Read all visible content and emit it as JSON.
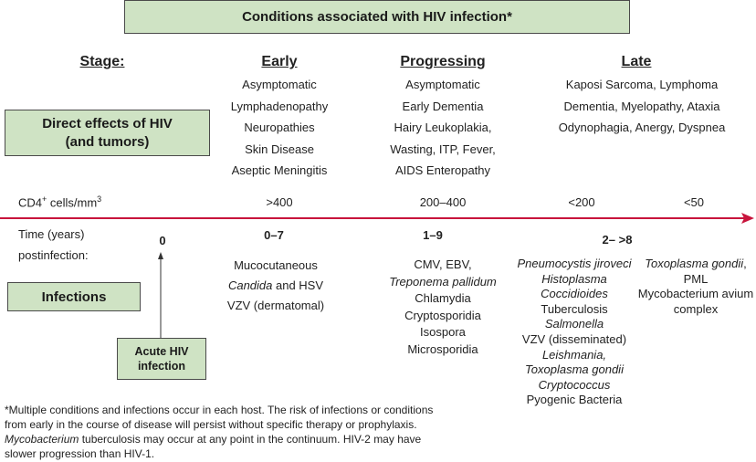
{
  "title": "Conditions associated with HIV infection*",
  "stage_label": "Stage:",
  "stages": [
    "Early",
    "Progressing",
    "Late"
  ],
  "direct_effects_label": "Direct effects of HIV (and tumors)",
  "direct_effects": {
    "early": [
      [
        {
          "t": "Asymptomatic"
        }
      ],
      [
        {
          "t": "Lymphadenopathy"
        }
      ],
      [
        {
          "t": "Neuropathies"
        }
      ],
      [
        {
          "t": "Skin Disease"
        }
      ],
      [
        {
          "t": "Aseptic Meningitis"
        }
      ]
    ],
    "progressing": [
      [
        {
          "t": "Asymptomatic"
        }
      ],
      [
        {
          "t": "Early Dementia"
        }
      ],
      [
        {
          "t": "Hairy Leukoplakia,"
        }
      ],
      [
        {
          "t": "Wasting, ITP, Fever,"
        }
      ],
      [
        {
          "t": "AIDS Enteropathy"
        }
      ]
    ],
    "late": [
      [
        {
          "t": "Kaposi Sarcoma, Lymphoma"
        }
      ],
      [
        {
          "t": "Dementia, Myelopathy, Ataxia"
        }
      ],
      [
        {
          "t": "Odynophagia, Anergy, Dyspnea"
        }
      ]
    ]
  },
  "cd4": {
    "label": "CD4",
    "sup": "+",
    "unit": " cells/mm",
    "unit_sup": "3",
    "values": [
      ">400",
      "200–400",
      "<200",
      "<50"
    ]
  },
  "time": {
    "label1": "Time (years)",
    "label2": "postinfection:",
    "zero": "0",
    "ranges": [
      "0–7",
      "1–9",
      "2– >8"
    ]
  },
  "acute_label": "Acute HIV infection",
  "infections_label": "Infections",
  "infections": {
    "early": [
      [
        {
          "t": "Mucocutaneous"
        }
      ],
      [
        {
          "t": "Candida",
          "i": true
        },
        {
          "t": " and HSV"
        }
      ],
      [
        {
          "t": "VZV (dermatomal)"
        }
      ]
    ],
    "progressing": [
      [
        {
          "t": "CMV, EBV,"
        }
      ],
      [
        {
          "t": "Treponema pallidum",
          "i": true
        }
      ],
      [
        {
          "t": "Chlamydia"
        }
      ],
      [
        {
          "t": "Cryptosporidia"
        }
      ],
      [
        {
          "t": "Isospora"
        }
      ],
      [
        {
          "t": "Microsporidia"
        }
      ]
    ],
    "late1": [
      [
        {
          "t": "Pneumocystis jiroveci",
          "i": true
        }
      ],
      [
        {
          "t": "Histoplasma",
          "i": true
        }
      ],
      [
        {
          "t": "Coccidioides",
          "i": true
        }
      ],
      [
        {
          "t": "Tuberculosis"
        }
      ],
      [
        {
          "t": "Salmonella",
          "i": true
        }
      ],
      [
        {
          "t": "VZV (disseminated)"
        }
      ],
      [
        {
          "t": "Leishmania,",
          "i": true
        }
      ],
      [
        {
          "t": "Toxoplasma gondii",
          "i": true
        }
      ],
      [
        {
          "t": "Cryptococcus",
          "i": true
        }
      ],
      [
        {
          "t": "Pyogenic Bacteria"
        }
      ]
    ],
    "late2": [
      [
        {
          "t": "Toxoplasma gondii",
          "i": true
        },
        {
          "t": ","
        }
      ],
      [
        {
          "t": "PML"
        }
      ],
      [
        {
          "t": "Mycobacterium avium"
        }
      ],
      [
        {
          "t": "complex"
        }
      ]
    ]
  },
  "footnote": [
    [
      {
        "t": "*Multiple conditions and infections occur in each host. The risk of infections or conditions"
      }
    ],
    [
      {
        "t": "from early in the course of disease will persist without specific therapy or prophylaxis."
      }
    ],
    [
      {
        "t": "Mycobacterium",
        "i": true
      },
      {
        "t": " tuberculosis may occur at any point in the continuum. HIV-2 may have"
      }
    ],
    [
      {
        "t": "slower progression than HIV-1."
      }
    ]
  ],
  "colors": {
    "box_fill": "#cfe3c4",
    "timeline": "#c8143c"
  }
}
